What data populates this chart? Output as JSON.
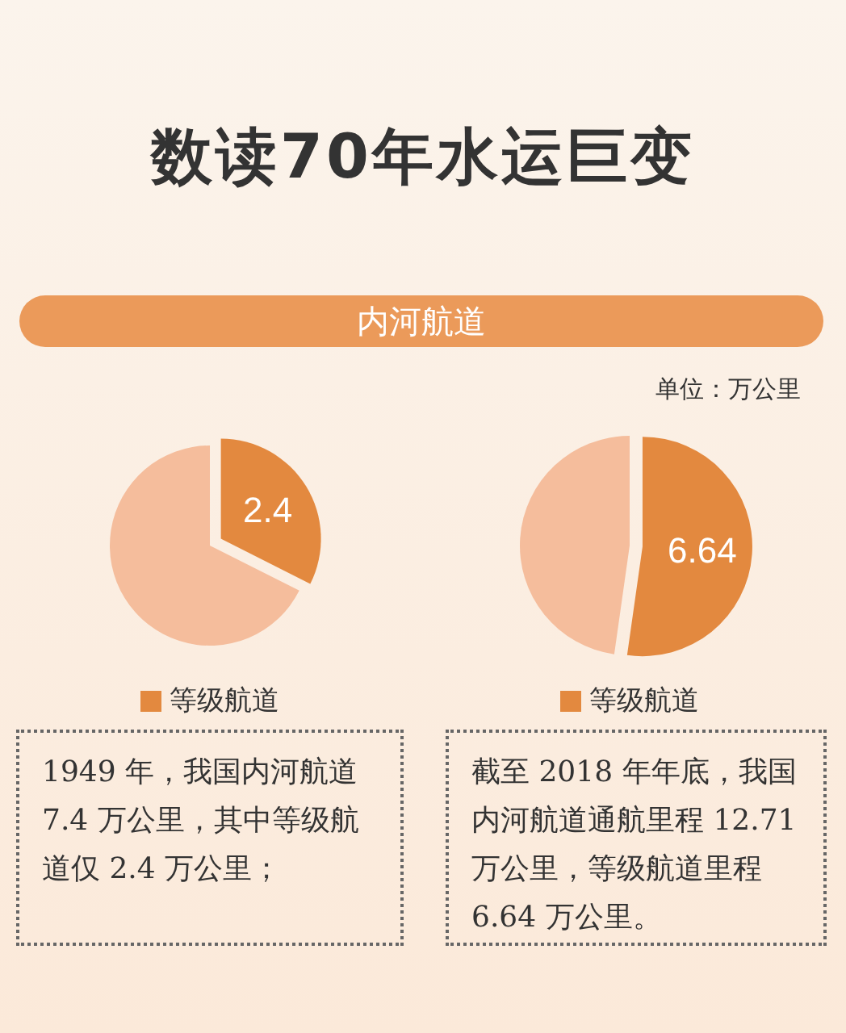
{
  "chart_data": [
    {
      "type": "pie",
      "title": "数读70年水运巨变",
      "subtitle": "内河航道",
      "categories": [
        "等级航道",
        null
      ],
      "values": [
        2.4,
        5.0
      ],
      "colors": [
        "#e3893f",
        "#f5bd9c"
      ],
      "value_labels": [
        "2.4",
        null
      ],
      "legend": "bottom",
      "annotations": [
        "1949 年，我国内河航道 7.4 万公里，其中等级航道仅 2.4 万公里；"
      ]
    },
    {
      "type": "pie",
      "categories": [
        "等级航道",
        null
      ],
      "values": [
        6.64,
        6.07
      ],
      "colors": [
        "#e3893f",
        "#f5bd9c"
      ],
      "value_labels": [
        "6.64",
        null
      ],
      "legend": "bottom",
      "annotations": [
        "单位：万公里",
        "截至 2018 年年底，我国内河航道通航里程 12.71 万公里，等级航道里程 6.64 万公里。"
      ]
    }
  ]
}
